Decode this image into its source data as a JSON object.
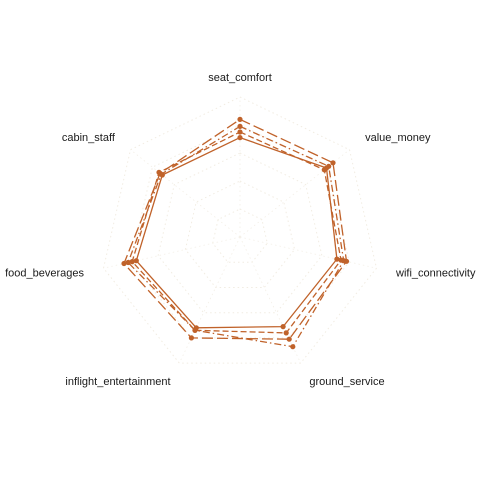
{
  "chart_data": {
    "type": "radar",
    "axes": [
      "seat_comfort",
      "value_money",
      "wifi_connectivity",
      "ground_service",
      "inflight_entertainment",
      "food_beverages",
      "cabin_staff"
    ],
    "rlim": [
      0,
      5
    ],
    "grid_levels": [
      1,
      2,
      3,
      4,
      5
    ],
    "grid": true,
    "legend": "none",
    "color": "#c0622a",
    "series": [
      {
        "values": [
          3.55,
          3.95,
          3.55,
          3.55,
          3.6,
          3.8,
          3.55
        ],
        "line_style": "solid"
      },
      {
        "values": [
          3.75,
          3.85,
          3.7,
          3.8,
          3.7,
          3.95,
          3.7
        ],
        "line_style": "dashed"
      },
      {
        "values": [
          3.95,
          4.05,
          3.8,
          4.35,
          3.7,
          4.1,
          3.6
        ],
        "line_style": "dashdot"
      },
      {
        "values": [
          4.2,
          4.25,
          3.9,
          4.05,
          4.0,
          4.25,
          3.65
        ],
        "line_style": "longdash"
      }
    ]
  }
}
